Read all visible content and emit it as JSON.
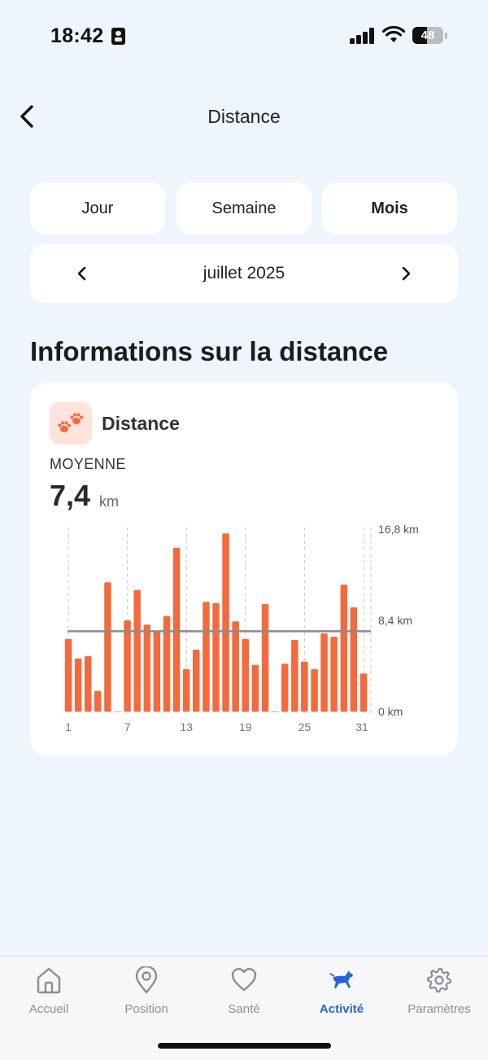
{
  "status_bar": {
    "time": "18:42",
    "battery_text": "48",
    "battery_level": 0.48
  },
  "header": {
    "title": "Distance",
    "back_icon": "chevron-left-icon"
  },
  "period_tabs": [
    {
      "label": "Jour",
      "active": false
    },
    {
      "label": "Semaine",
      "active": false
    },
    {
      "label": "Mois",
      "active": true
    }
  ],
  "month_nav": {
    "label": "juillet 2025",
    "prev_icon": "chevron-left-icon",
    "next_icon": "chevron-right-icon"
  },
  "section_title": "Informations sur la distance",
  "card": {
    "icon": "paw-icon",
    "title": "Distance",
    "average_label": "MOYENNE",
    "average_value": "7,4",
    "average_unit": "km"
  },
  "chart_data": {
    "type": "bar",
    "title": "",
    "xlabel": "",
    "ylabel": "",
    "x": [
      1,
      2,
      3,
      4,
      5,
      6,
      7,
      8,
      9,
      10,
      11,
      12,
      13,
      14,
      15,
      16,
      17,
      18,
      19,
      20,
      21,
      22,
      23,
      24,
      25,
      26,
      27,
      28,
      29,
      30,
      31
    ],
    "values": [
      6.7,
      4.9,
      5.1,
      1.9,
      11.9,
      0,
      8.4,
      11.2,
      8.0,
      7.4,
      8.8,
      15.1,
      3.9,
      5.7,
      10.1,
      10.0,
      16.4,
      8.3,
      6.7,
      4.3,
      9.9,
      0,
      4.4,
      6.6,
      4.6,
      3.9,
      7.2,
      6.9,
      11.7,
      9.6,
      3.5
    ],
    "average": 7.4,
    "ylim": [
      0,
      16.8
    ],
    "y_tick_labels": [
      "16,8 km",
      "8,4 km",
      "0 km"
    ],
    "y_tick_values": [
      16.8,
      8.4,
      0
    ],
    "x_tick_labels": [
      "1",
      "7",
      "13",
      "19",
      "25",
      "31"
    ],
    "x_tick_values": [
      1,
      7,
      13,
      19,
      25,
      31
    ],
    "bar_color": "#f26a3d",
    "average_line_color": "#8c8c8c",
    "grid": "vertical-dashed"
  },
  "tab_bar": [
    {
      "label": "Accueil",
      "icon": "home-icon",
      "active": false
    },
    {
      "label": "Position",
      "icon": "map-pin-icon",
      "active": false
    },
    {
      "label": "Santé",
      "icon": "heart-icon",
      "active": false
    },
    {
      "label": "Activité",
      "icon": "dog-running-icon",
      "active": true
    },
    {
      "label": "Paramètres",
      "icon": "gear-icon",
      "active": false
    }
  ],
  "colors": {
    "background": "#eff5fd",
    "accent": "#f26a3d",
    "active_tab": "#2a63d6",
    "inactive_tab": "#8d8d92"
  }
}
